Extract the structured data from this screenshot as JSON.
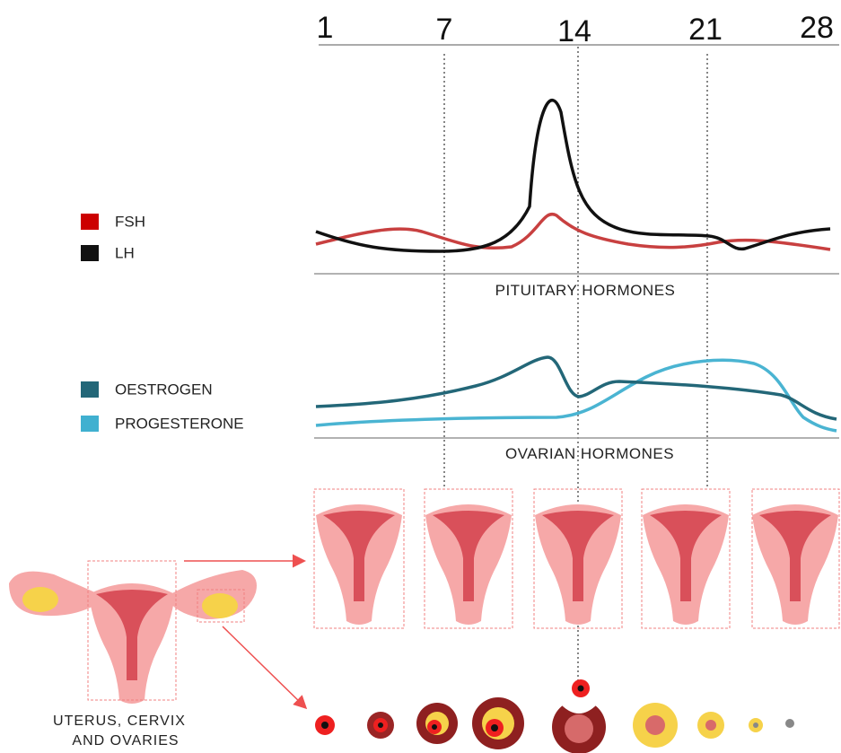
{
  "axis": {
    "days": [
      "1",
      "7",
      "14",
      "21",
      "28"
    ]
  },
  "legend": {
    "pituitary": [
      "FSH",
      "LH"
    ],
    "ovarian": [
      "OESTROGEN",
      "PROGESTERONE"
    ]
  },
  "panels": {
    "pituitary": "PITUITARY HORMONES",
    "ovarian": "OVARIAN HORMONES"
  },
  "caption": [
    "UTERUS, CERVIX",
    "AND OVARIES"
  ]
}
